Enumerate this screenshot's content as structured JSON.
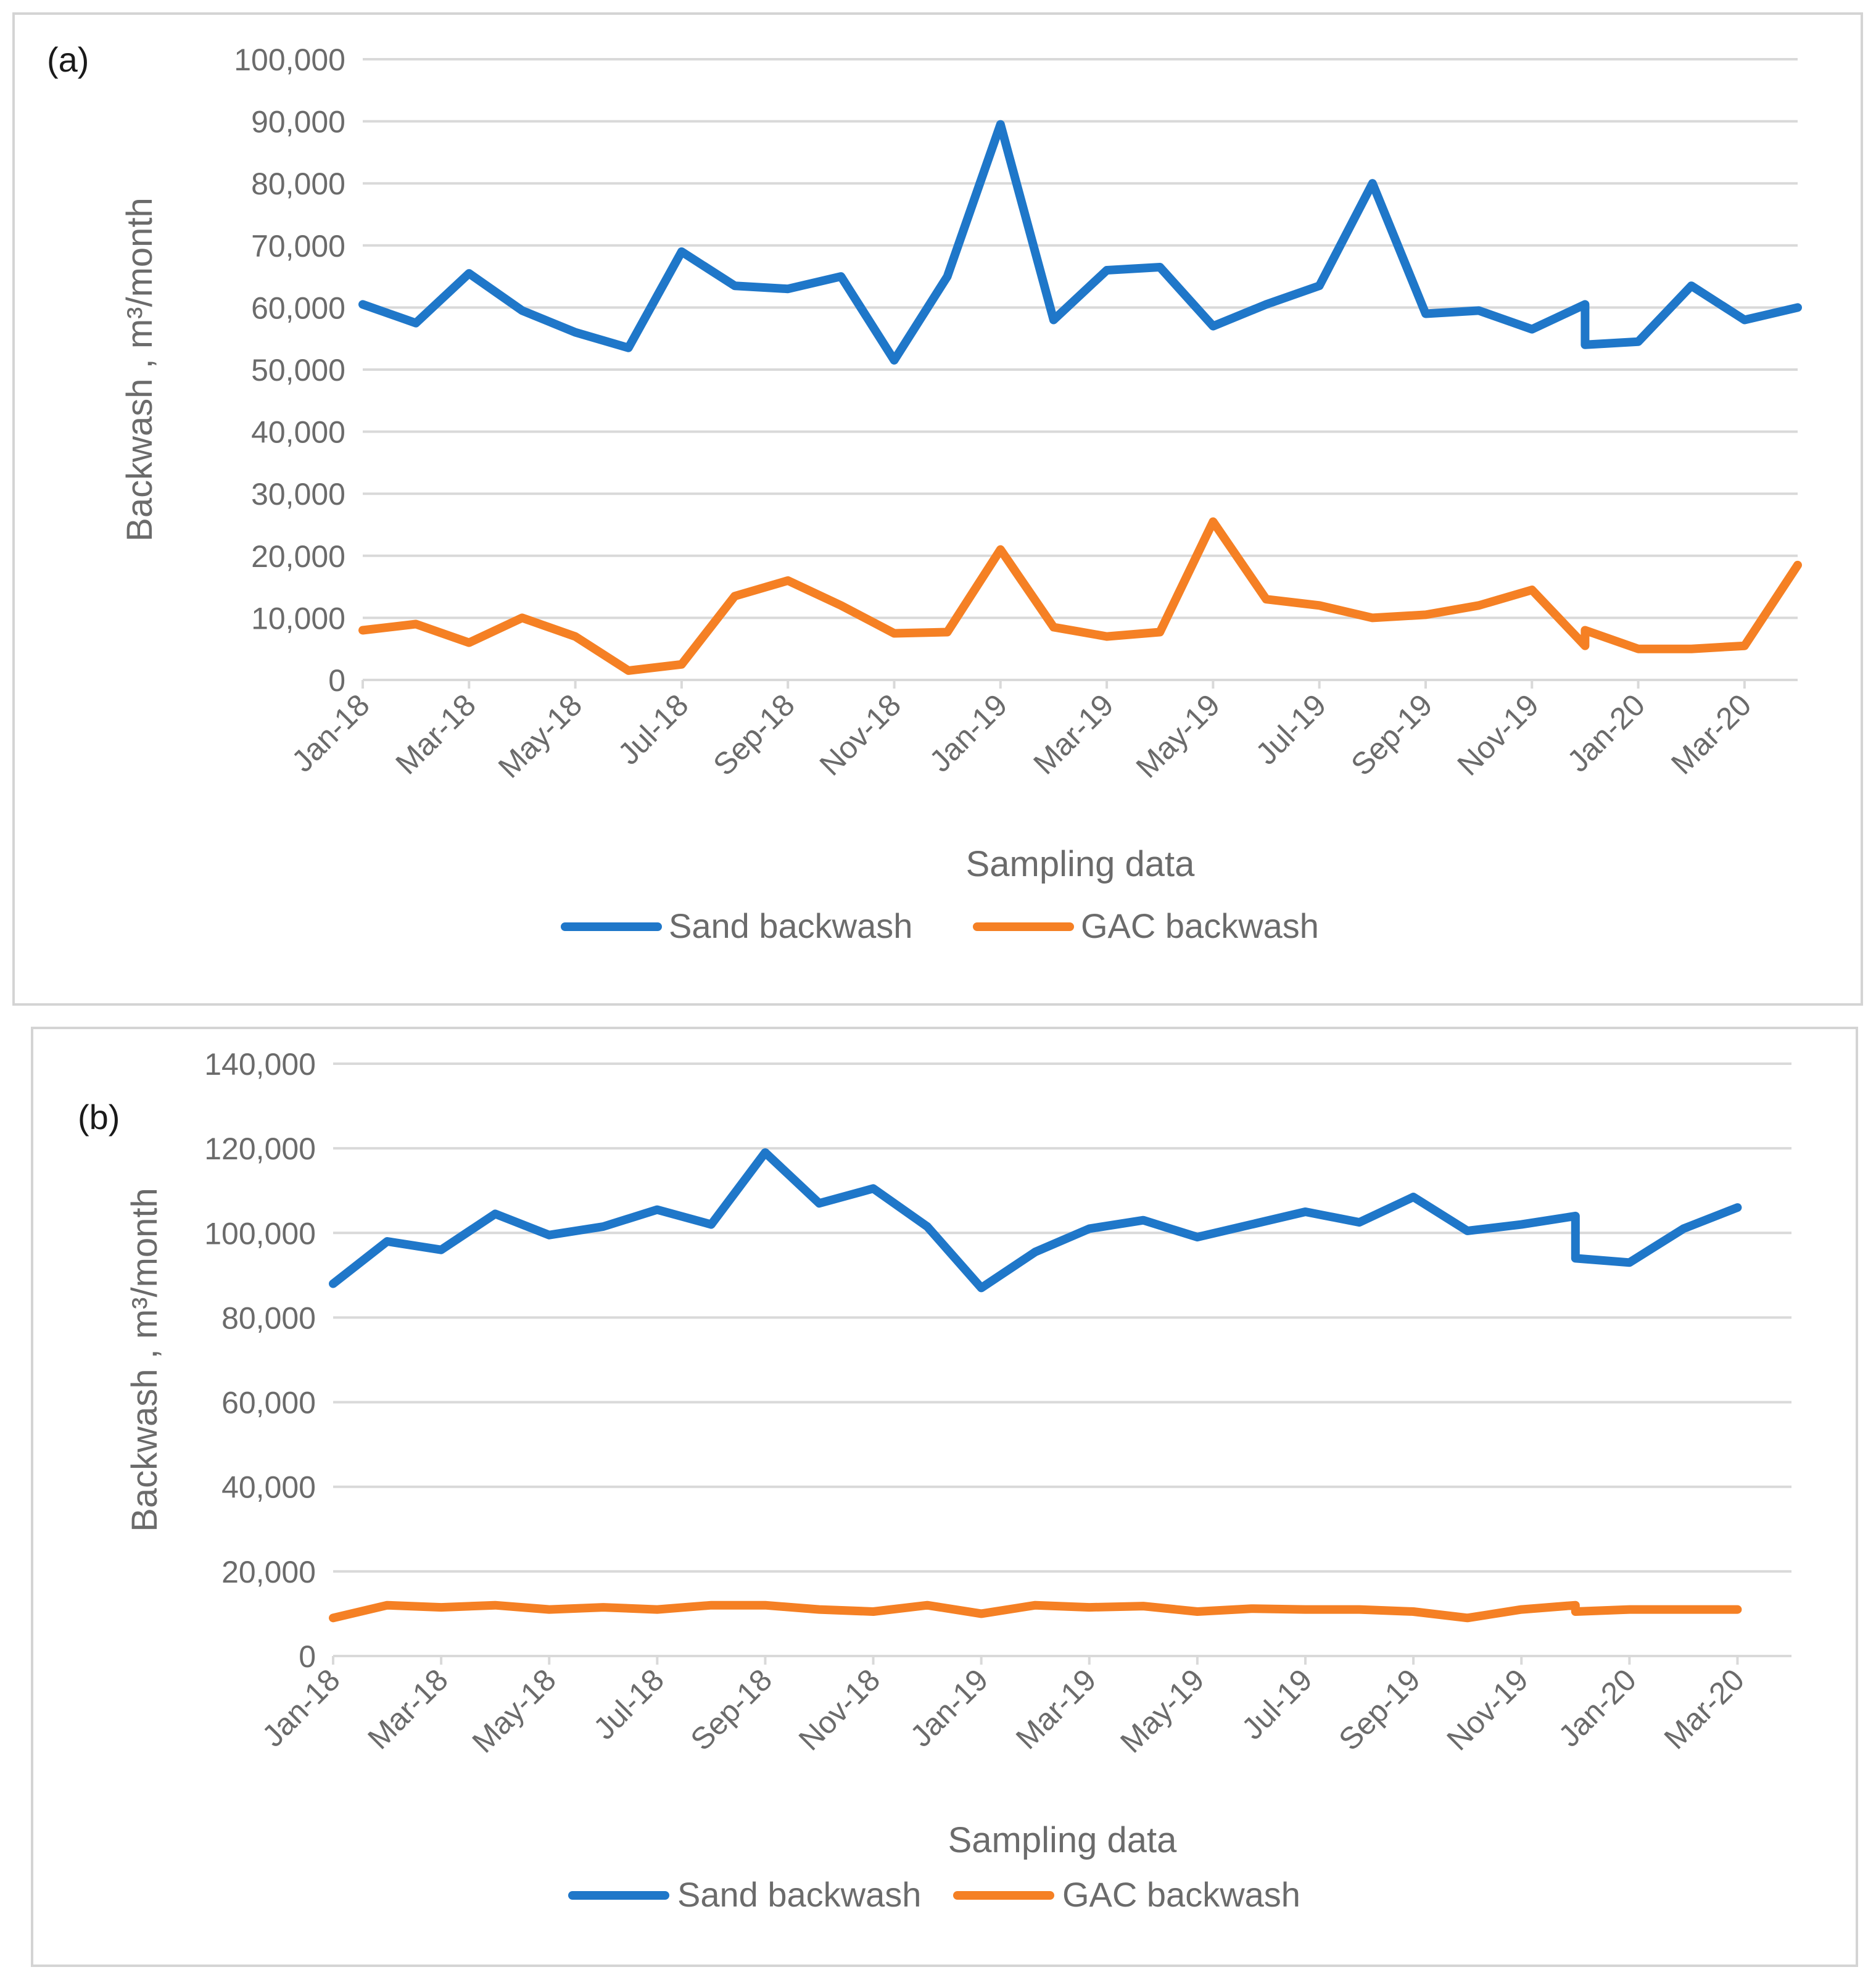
{
  "chart_data": [
    {
      "id": "a",
      "type": "line",
      "panel_label": "(a)",
      "title": "",
      "xlabel": "Sampling data",
      "ylabel": "Backwash , m³/month",
      "ylim": [
        0,
        100000
      ],
      "y_ticks": [
        0,
        10000,
        20000,
        30000,
        40000,
        50000,
        60000,
        70000,
        80000,
        90000,
        100000
      ],
      "y_tick_labels": [
        "0",
        "10,000",
        "20,000",
        "30,000",
        "40,000",
        "50,000",
        "60,000",
        "70,000",
        "80,000",
        "90,000",
        "100,000"
      ],
      "xlim": [
        0,
        27
      ],
      "x_ticks": [
        0,
        2,
        4,
        6,
        8,
        10,
        12,
        14,
        16,
        18,
        20,
        22,
        24,
        26
      ],
      "x_tick_labels": [
        "Jan-18",
        "Mar-18",
        "May-18",
        "Jul-18",
        "Sep-18",
        "Nov-18",
        "Jan-19",
        "Mar-19",
        "May-19",
        "Jul-19",
        "Sep-19",
        "Nov-19",
        "Jan-20",
        "Mar-20"
      ],
      "grid": true,
      "legend": "bottom",
      "series": [
        {
          "name": "Sand backwash",
          "color": "#1f77c9",
          "x": [
            0,
            1,
            2,
            3,
            4,
            5,
            6,
            7,
            8,
            9,
            10,
            11,
            12,
            13,
            14,
            15,
            16,
            17,
            18,
            19,
            20,
            21,
            22,
            23,
            23,
            24,
            25,
            26,
            27
          ],
          "values": [
            60500,
            57500,
            65500,
            59500,
            56000,
            53500,
            69000,
            63500,
            63000,
            65000,
            51500,
            65000,
            89500,
            58000,
            66000,
            66500,
            57000,
            60500,
            63500,
            80000,
            59000,
            59500,
            56500,
            60500,
            54000,
            54500,
            63500,
            58000,
            60000
          ]
        },
        {
          "name": "GAC backwash",
          "color": "#f58024",
          "x": [
            0,
            1,
            2,
            3,
            4,
            5,
            6,
            7,
            8,
            9,
            10,
            11,
            12,
            13,
            14,
            15,
            16,
            17,
            18,
            19,
            20,
            21,
            22,
            23,
            23,
            24,
            25,
            26,
            27
          ],
          "values": [
            8000,
            9000,
            6000,
            10000,
            7000,
            1500,
            2500,
            13500,
            16000,
            12000,
            7500,
            7700,
            21000,
            8500,
            7000,
            7700,
            25500,
            13000,
            12000,
            10000,
            10500,
            12000,
            14500,
            5500,
            8000,
            5000,
            5000,
            5500,
            18500
          ]
        }
      ]
    },
    {
      "id": "b",
      "type": "line",
      "panel_label": "(b)",
      "title": "",
      "xlabel": "Sampling data",
      "ylabel": "Backwash , m³/month",
      "ylim": [
        0,
        140000
      ],
      "y_ticks": [
        0,
        20000,
        40000,
        60000,
        80000,
        100000,
        120000,
        140000
      ],
      "y_tick_labels": [
        "0",
        "20,000",
        "40,000",
        "60,000",
        "80,000",
        "100,000",
        "120,000",
        "140,000"
      ],
      "xlim": [
        0,
        27
      ],
      "x_ticks": [
        0,
        2,
        4,
        6,
        8,
        10,
        12,
        14,
        16,
        18,
        20,
        22,
        24,
        26
      ],
      "x_tick_labels": [
        "Jan-18",
        "Mar-18",
        "May-18",
        "Jul-18",
        "Sep-18",
        "Nov-18",
        "Jan-19",
        "Mar-19",
        "May-19",
        "Jul-19",
        "Sep-19",
        "Nov-19",
        "Jan-20",
        "Mar-20"
      ],
      "grid": true,
      "legend": "bottom",
      "series": [
        {
          "name": "Sand backwash",
          "color": "#1f77c9",
          "x": [
            0,
            1,
            2,
            3,
            4,
            5,
            6,
            7,
            8,
            9,
            10,
            11,
            12,
            13,
            14,
            15,
            16,
            17,
            18,
            19,
            20,
            21,
            22,
            23,
            23,
            24,
            25,
            26
          ],
          "values": [
            88000,
            98000,
            96000,
            104500,
            99500,
            101500,
            105500,
            102000,
            119000,
            107000,
            110500,
            101500,
            87000,
            95500,
            101000,
            103000,
            99000,
            102000,
            105000,
            102500,
            108500,
            100500,
            102000,
            104000,
            94000,
            93000,
            101000,
            106000
          ]
        },
        {
          "name": "GAC backwash",
          "color": "#f58024",
          "x": [
            0,
            1,
            2,
            3,
            4,
            5,
            6,
            7,
            8,
            9,
            10,
            11,
            12,
            13,
            14,
            15,
            16,
            17,
            18,
            19,
            20,
            21,
            22,
            23,
            23,
            24,
            25,
            26
          ],
          "values": [
            9000,
            12000,
            11500,
            12000,
            11000,
            11500,
            11000,
            12000,
            12000,
            11000,
            10500,
            12000,
            10000,
            12000,
            11500,
            11800,
            10500,
            11200,
            11000,
            11000,
            10500,
            9000,
            11000,
            12000,
            10500,
            11000,
            11000,
            11000
          ]
        }
      ]
    }
  ]
}
